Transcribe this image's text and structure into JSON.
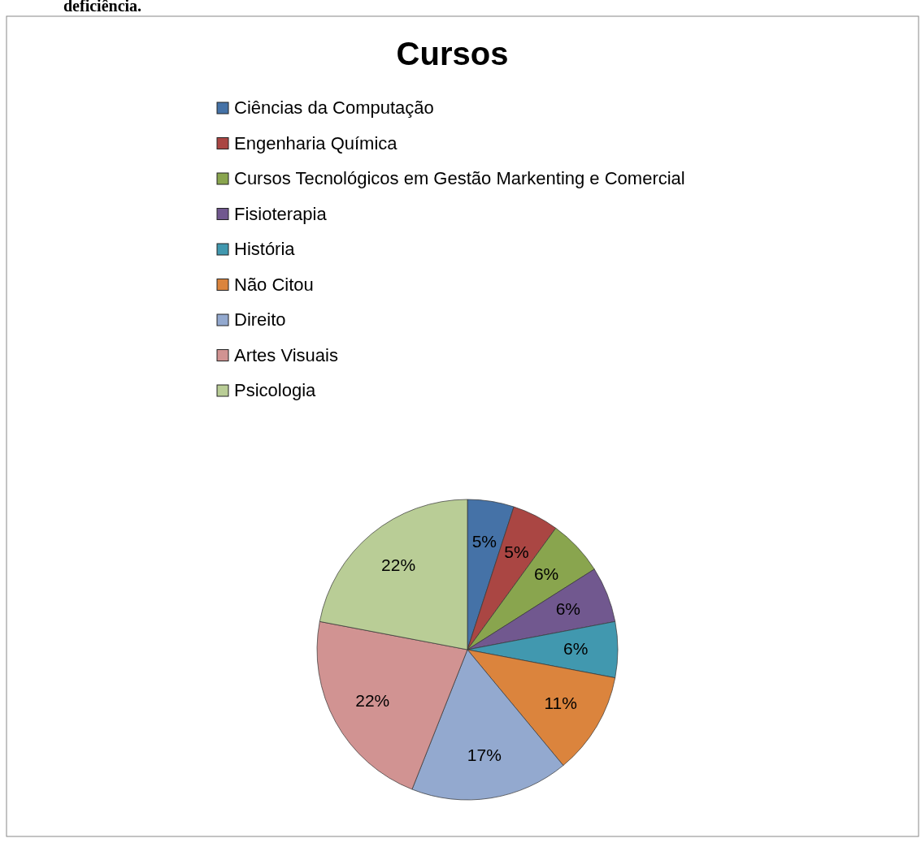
{
  "chart_data": {
    "type": "pie",
    "title": "Cursos",
    "annotations": [
      "deficiência."
    ],
    "categories": [
      "Ciências da Computação",
      "Engenharia Química",
      "Cursos Tecnológicos em Gestão Markenting e Comercial",
      "Fisioterapia",
      "História",
      "Não Citou",
      "Direito",
      "Artes Visuais",
      "Psicologia"
    ],
    "values": [
      5,
      5,
      6,
      6,
      6,
      11,
      17,
      22,
      22
    ],
    "colors": [
      "#4572a7",
      "#aa4643",
      "#89a54e",
      "#71588f",
      "#4198af",
      "#db843d",
      "#93a9cf",
      "#d19392",
      "#b9cd96"
    ],
    "value_labels": [
      "5%",
      "5%",
      "6%",
      "6%",
      "6%",
      "11%",
      "17%",
      "22%",
      "22%"
    ],
    "legend": "top"
  }
}
